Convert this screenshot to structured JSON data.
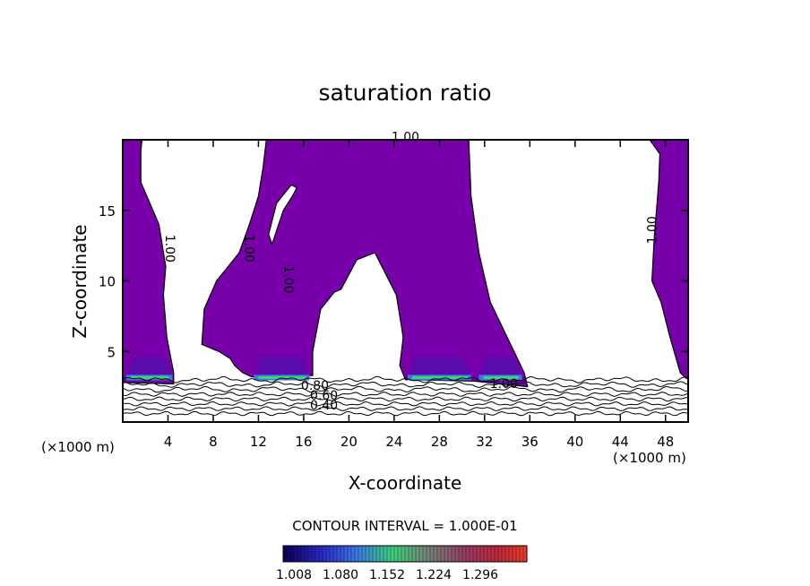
{
  "chart_data": {
    "type": "contour",
    "title": "saturation ratio",
    "xlabel": "X-coordinate",
    "ylabel": "Z-coordinate",
    "x_units": "(×1000 m)",
    "xlim": [
      0,
      50
    ],
    "ylim": [
      0,
      20
    ],
    "xticks": [
      4,
      8,
      12,
      16,
      20,
      24,
      28,
      32,
      36,
      40,
      44,
      48
    ],
    "yticks": [
      5,
      10,
      15
    ],
    "fill_color": "#7800aa",
    "contour_interval_text": "CONTOUR INTERVAL = 1.000E-01",
    "contour_labels": [
      {
        "text": "1.00",
        "x": 25,
        "y": 19.9,
        "rotate": 0
      },
      {
        "text": "1.00",
        "x": 3.8,
        "y": 12.3,
        "rotate": 90
      },
      {
        "text": "1.00",
        "x": 10.8,
        "y": 12.3,
        "rotate": 90
      },
      {
        "text": "1.00",
        "x": 14.3,
        "y": 10.1,
        "rotate": 90
      },
      {
        "text": "1.00",
        "x": 47.2,
        "y": 13.6,
        "rotate": -90
      },
      {
        "text": "1.00",
        "x": 33.7,
        "y": 2.4,
        "rotate": 0
      },
      {
        "text": "0.80",
        "x": 17.0,
        "y": 2.3,
        "rotate": 0
      },
      {
        "text": "0.60",
        "x": 17.8,
        "y": 1.6,
        "rotate": 0
      },
      {
        "text": "0.40",
        "x": 17.8,
        "y": 0.9,
        "rotate": 0
      }
    ],
    "regions": [
      {
        "name": "saturated-region-left",
        "points": [
          [
            0,
            20
          ],
          [
            0,
            2.8
          ],
          [
            4.5,
            2.7
          ],
          [
            4.5,
            3.5
          ],
          [
            3.9,
            6
          ],
          [
            3.6,
            9
          ],
          [
            3.8,
            11
          ],
          [
            3.2,
            14
          ],
          [
            1.6,
            17
          ],
          [
            1.6,
            19.2
          ],
          [
            1.7,
            20
          ]
        ]
      },
      {
        "name": "saturated-region-central",
        "points": [
          [
            12,
            20
          ],
          [
            30.6,
            20
          ],
          [
            30.8,
            16
          ],
          [
            31.5,
            12
          ],
          [
            32.5,
            8.5
          ],
          [
            34,
            6
          ],
          [
            35.5,
            3.5
          ],
          [
            35.8,
            2.5
          ],
          [
            31,
            2.9
          ],
          [
            25,
            3.0
          ],
          [
            24.5,
            4
          ],
          [
            24.8,
            6
          ],
          [
            24.2,
            9
          ],
          [
            22.3,
            12
          ],
          [
            20.7,
            11.5
          ],
          [
            19.3,
            9.4
          ],
          [
            18.7,
            9.2
          ],
          [
            17.5,
            8
          ],
          [
            16.8,
            5
          ],
          [
            16.8,
            3.3
          ],
          [
            13.5,
            3.2
          ],
          [
            11.4,
            3.2
          ],
          [
            10.6,
            3.5
          ],
          [
            9.9,
            4
          ],
          [
            9.5,
            4.5
          ],
          [
            8.5,
            5
          ],
          [
            7.0,
            5.5
          ],
          [
            7.2,
            8
          ],
          [
            8.3,
            10
          ],
          [
            10.3,
            12
          ],
          [
            11.2,
            14
          ],
          [
            12.0,
            16
          ],
          [
            12.4,
            18
          ],
          [
            12.7,
            20
          ]
        ]
      },
      {
        "name": "saturated-region-right",
        "points": [
          [
            50,
            20
          ],
          [
            46.6,
            20
          ],
          [
            47.5,
            19
          ],
          [
            47.4,
            17
          ],
          [
            47.0,
            13
          ],
          [
            46.8,
            10
          ],
          [
            47.6,
            8.5
          ],
          [
            48.4,
            6
          ],
          [
            49.3,
            3.5
          ],
          [
            49.8,
            3.1
          ],
          [
            50,
            3.1
          ]
        ]
      }
    ],
    "holes": [
      {
        "name": "unsaturated-pocket",
        "points": [
          [
            13.2,
            12.6
          ],
          [
            14.2,
            15
          ],
          [
            15.0,
            16
          ],
          [
            15.4,
            16.6
          ],
          [
            14.9,
            16.8
          ],
          [
            13.6,
            15.5
          ],
          [
            12.9,
            13.3
          ]
        ]
      }
    ],
    "high_zones": [
      {
        "x0": 0.3,
        "x1": 4.4,
        "level": 1.08
      },
      {
        "x0": 11.6,
        "x1": 16.5,
        "level": 1.1
      },
      {
        "x0": 25.2,
        "x1": 30.8,
        "level": 1.1
      },
      {
        "x0": 31.5,
        "x1": 35.3,
        "level": 1.05
      }
    ],
    "stable_layers": {
      "count": 8,
      "z_top": 3.0,
      "z_bottom": 0.6
    },
    "colorbar": {
      "min": 1.008,
      "max": 1.35,
      "ticks": [
        "1.008",
        "1.080",
        "1.152",
        "1.224",
        "1.296"
      ]
    }
  }
}
